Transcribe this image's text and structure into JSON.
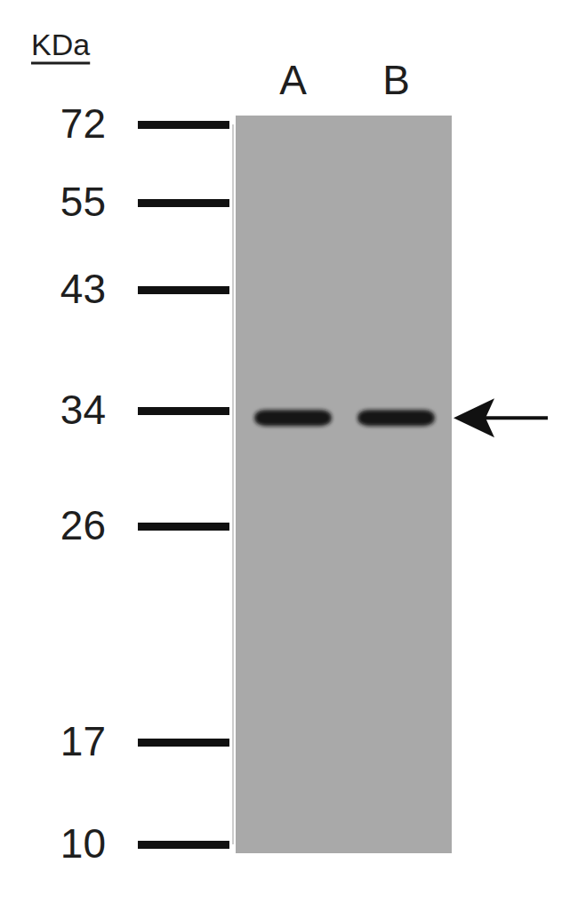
{
  "chart_data": {
    "type": "blot",
    "y_label": "KDa",
    "categories": [
      "A",
      "B"
    ],
    "values": [
      33.5,
      33.5
    ],
    "ylim": [
      10,
      72
    ],
    "yticks": [
      72,
      55,
      43,
      34,
      26,
      17,
      10
    ]
  }
}
